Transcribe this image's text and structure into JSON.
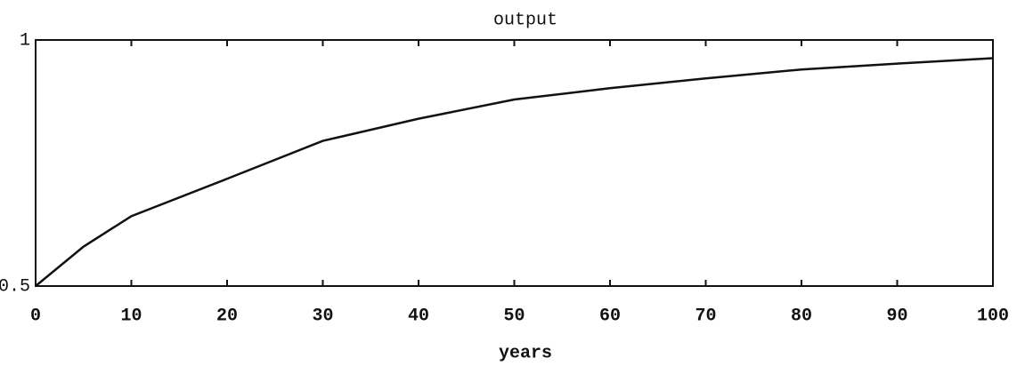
{
  "chart_data": {
    "type": "line",
    "title": "output",
    "xlabel": "years",
    "x": [
      0,
      5,
      10,
      20,
      30,
      40,
      50,
      60,
      70,
      80,
      90,
      100
    ],
    "series": [
      {
        "name": "output",
        "color": "#111111",
        "values": [
          0.5,
          0.58,
          0.642,
          0.718,
          0.795,
          0.84,
          0.879,
          0.902,
          0.922,
          0.94,
          0.952,
          0.963
        ]
      }
    ],
    "xlim": [
      0,
      100
    ],
    "xticks": [
      0,
      10,
      20,
      30,
      40,
      50,
      60,
      70,
      80,
      90,
      100
    ],
    "ylim": [
      0.5,
      1
    ],
    "yticks": [
      0.5,
      1
    ],
    "grid": false
  }
}
